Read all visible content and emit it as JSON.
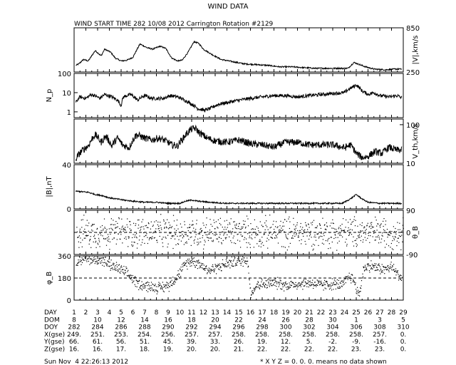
{
  "figure": {
    "title": "WIND DATA",
    "subtitle": "WIND START TIME 282 10/08 2012 Carrington Rotation #2129",
    "footer_timestamp": "Sun Nov  4 22:26:13 2012",
    "footer_note": "* X Y Z = 0. 0. 0. means no data shown"
  },
  "chart_data": [
    {
      "type": "line",
      "name": "velocity",
      "ylabel": "|V|,km/s",
      "ylabel_side": "right",
      "ylim": [
        250,
        850
      ],
      "yticks": [
        "850",
        "250"
      ],
      "dashed_zero": false,
      "knots": [
        [
          1.15,
          340
        ],
        [
          1.4,
          360
        ],
        [
          1.8,
          420
        ],
        [
          2.2,
          400
        ],
        [
          2.8,
          540
        ],
        [
          3.3,
          470
        ],
        [
          3.6,
          560
        ],
        [
          4.1,
          520
        ],
        [
          4.5,
          440
        ],
        [
          5.0,
          400
        ],
        [
          5.5,
          410
        ],
        [
          6.0,
          450
        ],
        [
          6.6,
          630
        ],
        [
          7.2,
          580
        ],
        [
          7.7,
          560
        ],
        [
          8.3,
          600
        ],
        [
          8.8,
          570
        ],
        [
          9.3,
          440
        ],
        [
          9.8,
          400
        ],
        [
          10.2,
          410
        ],
        [
          10.7,
          520
        ],
        [
          11.2,
          660
        ],
        [
          11.6,
          640
        ],
        [
          12.0,
          560
        ],
        [
          12.7,
          490
        ],
        [
          13.5,
          420
        ],
        [
          14.5,
          390
        ],
        [
          15.5,
          360
        ],
        [
          16.5,
          350
        ],
        [
          17.5,
          340
        ],
        [
          18.5,
          320
        ],
        [
          19.5,
          320
        ],
        [
          20.5,
          310
        ],
        [
          21.5,
          300
        ],
        [
          22.5,
          300
        ],
        [
          23.5,
          300
        ],
        [
          24.3,
          300
        ],
        [
          24.8,
          380
        ],
        [
          25.3,
          350
        ],
        [
          25.8,
          320
        ],
        [
          26.5,
          290
        ],
        [
          27.5,
          280
        ],
        [
          28.3,
          290
        ],
        [
          28.9,
          290
        ]
      ]
    },
    {
      "type": "line",
      "name": "density",
      "log": true,
      "ylabel": "N_p",
      "ylabel_side": "left",
      "ylim": [
        0.5,
        100
      ],
      "yticks": [
        "100",
        "10",
        "1"
      ],
      "dashed_zero": false,
      "knots": [
        [
          1.15,
          3
        ],
        [
          1.5,
          6
        ],
        [
          2.0,
          5
        ],
        [
          2.5,
          8
        ],
        [
          3.2,
          5
        ],
        [
          3.6,
          8
        ],
        [
          4.2,
          6
        ],
        [
          4.7,
          4
        ],
        [
          5.0,
          2
        ],
        [
          5.2,
          6
        ],
        [
          5.8,
          8
        ],
        [
          6.4,
          4
        ],
        [
          7.0,
          7
        ],
        [
          7.6,
          5
        ],
        [
          8.1,
          5
        ],
        [
          8.6,
          5
        ],
        [
          9.2,
          7
        ],
        [
          9.8,
          6
        ],
        [
          10.4,
          4
        ],
        [
          11.0,
          2.5
        ],
        [
          11.5,
          1.5
        ],
        [
          12.1,
          1.2
        ],
        [
          12.6,
          1.5
        ],
        [
          13.3,
          2.5
        ],
        [
          14.0,
          3
        ],
        [
          15.0,
          4
        ],
        [
          16.0,
          5
        ],
        [
          17.0,
          6
        ],
        [
          18.0,
          7
        ],
        [
          19.0,
          7
        ],
        [
          20.0,
          6
        ],
        [
          21.0,
          7
        ],
        [
          22.0,
          8
        ],
        [
          23.0,
          9
        ],
        [
          24.0,
          10
        ],
        [
          24.6,
          18
        ],
        [
          25.0,
          25
        ],
        [
          25.5,
          12
        ],
        [
          26.0,
          8
        ],
        [
          26.5,
          10
        ],
        [
          27.0,
          7
        ],
        [
          27.8,
          6
        ],
        [
          28.5,
          7
        ],
        [
          28.9,
          5
        ]
      ]
    },
    {
      "type": "line",
      "name": "thermal-speed",
      "log": true,
      "ylabel": "V_th,km/s",
      "ylabel_side": "right",
      "ylim": [
        10,
        140
      ],
      "yticks": [
        "100",
        "10"
      ],
      "dashed_zero": false,
      "knots": [
        [
          1.15,
          13
        ],
        [
          1.6,
          20
        ],
        [
          2.2,
          28
        ],
        [
          2.8,
          55
        ],
        [
          3.3,
          35
        ],
        [
          3.7,
          50
        ],
        [
          4.2,
          28
        ],
        [
          4.7,
          45
        ],
        [
          5.1,
          30
        ],
        [
          5.7,
          25
        ],
        [
          6.3,
          55
        ],
        [
          7.0,
          45
        ],
        [
          7.6,
          40
        ],
        [
          8.2,
          45
        ],
        [
          8.8,
          38
        ],
        [
          9.3,
          30
        ],
        [
          9.8,
          28
        ],
        [
          10.3,
          45
        ],
        [
          10.9,
          75
        ],
        [
          11.3,
          80
        ],
        [
          11.7,
          60
        ],
        [
          12.3,
          45
        ],
        [
          13.0,
          38
        ],
        [
          14.0,
          35
        ],
        [
          15.0,
          40
        ],
        [
          16.0,
          32
        ],
        [
          17.0,
          30
        ],
        [
          18.0,
          26
        ],
        [
          19.0,
          35
        ],
        [
          20.0,
          35
        ],
        [
          21.0,
          30
        ],
        [
          22.0,
          30
        ],
        [
          23.0,
          30
        ],
        [
          24.0,
          25
        ],
        [
          24.5,
          30
        ],
        [
          25.0,
          18
        ],
        [
          25.5,
          14
        ],
        [
          26.0,
          15
        ],
        [
          26.6,
          20
        ],
        [
          27.2,
          18
        ],
        [
          27.8,
          26
        ],
        [
          28.4,
          22
        ],
        [
          28.9,
          22
        ]
      ]
    },
    {
      "type": "line",
      "name": "magnetic-field",
      "ylabel": "|B|,nT",
      "ylabel_side": "left",
      "ylim": [
        0,
        40
      ],
      "yticks": [
        "40",
        "0"
      ],
      "dashed_zero": false,
      "knots": [
        [
          1.15,
          16
        ],
        [
          2.2,
          15
        ],
        [
          2.8,
          13
        ],
        [
          3.4,
          12
        ],
        [
          4.0,
          10
        ],
        [
          4.6,
          9
        ],
        [
          5.2,
          8
        ],
        [
          6.0,
          7
        ],
        [
          7.0,
          6
        ],
        [
          8.0,
          6
        ],
        [
          9.0,
          5
        ],
        [
          10.0,
          5
        ],
        [
          10.5,
          7
        ],
        [
          11.0,
          8
        ],
        [
          11.5,
          7
        ],
        [
          12.5,
          6
        ],
        [
          14.0,
          5
        ],
        [
          16.0,
          5
        ],
        [
          18.0,
          5
        ],
        [
          20.0,
          5
        ],
        [
          22.0,
          5
        ],
        [
          23.8,
          5
        ],
        [
          24.5,
          9
        ],
        [
          25.0,
          13
        ],
        [
          25.5,
          9
        ],
        [
          26.0,
          6
        ],
        [
          27.0,
          5
        ],
        [
          28.0,
          5
        ],
        [
          28.9,
          5
        ]
      ]
    },
    {
      "type": "scatter",
      "name": "b-theta",
      "ylabel": "θ_B",
      "ylabel_side": "right",
      "ylim": [
        -90,
        90
      ],
      "yticks": [
        "90",
        "0",
        "-90"
      ],
      "dashed_zero": true,
      "knots": [
        [
          1.2,
          0
        ],
        [
          29,
          0
        ]
      ]
    },
    {
      "type": "scatter",
      "name": "b-phi",
      "ylabel": "φ_B",
      "ylabel_side": "left",
      "ylim": [
        0,
        360
      ],
      "yticks": [
        "360",
        "180",
        "0"
      ],
      "dashed_zero": true,
      "knots": [
        [
          1.15,
          315
        ],
        [
          1.8,
          340
        ],
        [
          2.5,
          325
        ],
        [
          3.2,
          330
        ],
        [
          3.6,
          310
        ],
        [
          4.2,
          275
        ],
        [
          4.8,
          255
        ],
        [
          5.2,
          230
        ],
        [
          5.8,
          190
        ],
        [
          6.3,
          140
        ],
        [
          6.8,
          120
        ],
        [
          7.5,
          110
        ],
        [
          8.3,
          100
        ],
        [
          9.0,
          120
        ],
        [
          9.8,
          200
        ],
        [
          10.5,
          300
        ],
        [
          11.0,
          320
        ],
        [
          11.6,
          300
        ],
        [
          12.0,
          270
        ],
        [
          12.5,
          240
        ],
        [
          13.2,
          270
        ],
        [
          13.8,
          290
        ],
        [
          14.5,
          310
        ],
        [
          15.2,
          320
        ],
        [
          15.7,
          330
        ],
        [
          16.0,
          60
        ],
        [
          16.6,
          130
        ],
        [
          17.3,
          130
        ],
        [
          18.0,
          140
        ],
        [
          19.0,
          120
        ],
        [
          20.0,
          130
        ],
        [
          21.0,
          140
        ],
        [
          22.0,
          120
        ],
        [
          23.0,
          130
        ],
        [
          23.8,
          120
        ],
        [
          24.4,
          200
        ],
        [
          24.8,
          150
        ],
        [
          25.2,
          30
        ],
        [
          25.6,
          260
        ],
        [
          26.2,
          280
        ],
        [
          26.8,
          260
        ],
        [
          27.4,
          250
        ],
        [
          28.0,
          270
        ],
        [
          28.6,
          200
        ],
        [
          28.9,
          180
        ]
      ]
    }
  ],
  "x_axis": {
    "range": [
      1,
      29
    ],
    "tick_days": [
      1,
      2,
      3,
      4,
      5,
      6,
      7,
      8,
      9,
      10,
      11,
      12,
      13,
      14,
      15,
      16,
      17,
      18,
      19,
      20,
      21,
      22,
      23,
      24,
      25,
      26,
      27,
      28,
      29
    ]
  },
  "time_rows": [
    {
      "label": "DAY",
      "cells": [
        "1",
        "2",
        "3",
        "4",
        "5",
        "6",
        "7",
        "8",
        "9",
        "10",
        "11",
        "12",
        "13",
        "14",
        "15",
        "16",
        "17",
        "18",
        "19",
        "20",
        "21",
        "22",
        "23",
        "24",
        "25",
        "26",
        "27",
        "28",
        "29"
      ],
      "align_days": [
        1,
        2,
        3,
        4,
        5,
        6,
        7,
        8,
        9,
        10,
        11,
        12,
        13,
        14,
        15,
        16,
        17,
        18,
        19,
        20,
        21,
        22,
        23,
        24,
        25,
        26,
        27,
        28,
        29
      ]
    },
    {
      "label": "DOM",
      "cells": [
        "8",
        "10",
        "12",
        "14",
        "16",
        "18",
        "20",
        "22",
        "24",
        "26",
        "28",
        "30",
        "1",
        "3",
        "5"
      ],
      "align_days": [
        1,
        3,
        5,
        7,
        9,
        11,
        13,
        15,
        17,
        19,
        21,
        23,
        25,
        27,
        29
      ]
    },
    {
      "label": "DOY",
      "cells": [
        "282",
        "284",
        "286",
        "288",
        "290",
        "292",
        "294",
        "296",
        "298",
        "300",
        "302",
        "304",
        "306",
        "308",
        "310"
      ],
      "align_days": [
        1,
        3,
        5,
        7,
        9,
        11,
        13,
        15,
        17,
        19,
        21,
        23,
        25,
        27,
        29
      ]
    },
    {
      "label": "X(gse)",
      "cells": [
        "249.",
        "251.",
        "253.",
        "254.",
        "256.",
        "257.",
        "257.",
        "258.",
        "258.",
        "258.",
        "258.",
        "258.",
        "258.",
        "257.",
        "0."
      ],
      "align_days": [
        1,
        3,
        5,
        7,
        9,
        11,
        13,
        15,
        17,
        19,
        21,
        23,
        25,
        27,
        29
      ]
    },
    {
      "label": "Y(gse)",
      "cells": [
        "66.",
        "61.",
        "56.",
        "51.",
        "45.",
        "39.",
        "33.",
        "26.",
        "19.",
        "12.",
        "5.",
        "-2.",
        "-9.",
        "-16.",
        "0."
      ],
      "align_days": [
        1,
        3,
        5,
        7,
        9,
        11,
        13,
        15,
        17,
        19,
        21,
        23,
        25,
        27,
        29
      ]
    },
    {
      "label": "Z(gse)",
      "cells": [
        "16.",
        "16.",
        "17.",
        "18.",
        "19.",
        "20.",
        "20.",
        "21.",
        "22.",
        "22.",
        "22.",
        "22.",
        "23.",
        "23.",
        "0."
      ],
      "align_days": [
        1,
        3,
        5,
        7,
        9,
        11,
        13,
        15,
        17,
        19,
        21,
        23,
        25,
        27,
        29
      ]
    }
  ]
}
